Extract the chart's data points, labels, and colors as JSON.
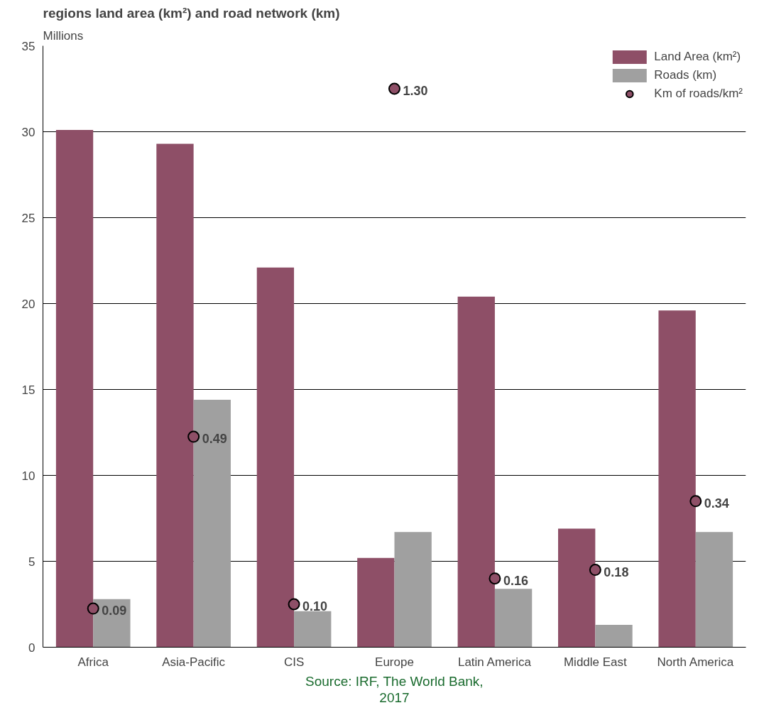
{
  "chart_data": {
    "type": "bar",
    "title": "regions land area (km²) and road network (km)",
    "ylabel": "Millions",
    "categories": [
      "Africa",
      "Asia-Pacific",
      "CIS",
      "Europe",
      "Latin America",
      "Middle East",
      "North America"
    ],
    "series": [
      {
        "name": "Land Area (km²)",
        "color": "#8e4f67",
        "values": [
          30.1,
          29.3,
          22.1,
          5.2,
          20.4,
          6.9,
          19.6
        ]
      },
      {
        "name": "Roads (km)",
        "color": "#a0a0a0",
        "values": [
          2.8,
          14.4,
          2.1,
          6.7,
          3.4,
          1.3,
          6.7
        ]
      },
      {
        "name": "Km of roads/km²",
        "type": "scatter",
        "axis": "y2",
        "color": "#8e4f67",
        "values": [
          0.09,
          0.49,
          0.1,
          1.3,
          0.16,
          0.18,
          0.34
        ],
        "value_labels": [
          "0.09",
          "0.49",
          "0.10",
          "1.30",
          "0.16",
          "0.18",
          "0.34"
        ]
      }
    ],
    "ylim": [
      0,
      35
    ],
    "yticks": [
      0,
      5,
      10,
      15,
      20,
      25,
      30,
      35
    ],
    "y2lim": [
      0,
      1.4
    ],
    "grid": "y",
    "legend": "top right",
    "marker": "circle",
    "annotations": [
      "Source: IRF, The World Bank,",
      "2017"
    ]
  }
}
